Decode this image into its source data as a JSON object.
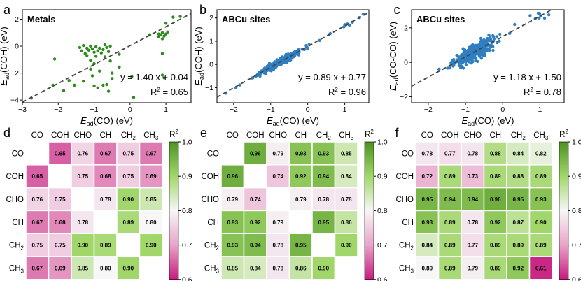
{
  "panel_labels": [
    "a",
    "b",
    "c",
    "d",
    "e",
    "f"
  ],
  "chart_data": [
    {
      "type": "scatter",
      "panel": "a",
      "title": "Metals",
      "xlabel": "E_ad(CO) (eV)",
      "ylabel": "E_ad(COH) (eV)",
      "xlim": [
        -3.0,
        1.7
      ],
      "ylim": [
        -4.2,
        2.7
      ],
      "xticks": [
        "-3",
        "-2",
        "-1",
        "0",
        "1"
      ],
      "yticks": [
        "-4",
        "-2",
        "0",
        "2"
      ],
      "fit": {
        "slope": 1.4,
        "intercept": 0.04
      },
      "annotation": {
        "equation": "y = 1.40 x + 0.04",
        "r2_label": "R",
        "r2_value": " = 0.65"
      },
      "color": "#2e8b1e",
      "points": [
        [
          -2.75,
          -3.85
        ],
        [
          -2.15,
          -2.9
        ],
        [
          -1.85,
          -3.3
        ],
        [
          -1.7,
          -2.55
        ],
        [
          -1.55,
          -2.9
        ],
        [
          -2.1,
          -0.95
        ],
        [
          -1.3,
          -2.6
        ],
        [
          -1.1,
          -1.7
        ],
        [
          -1.05,
          -2.2
        ],
        [
          -1.0,
          -2.95
        ],
        [
          -0.9,
          -3.1
        ],
        [
          -0.85,
          -1.85
        ],
        [
          -0.65,
          -2.85
        ],
        [
          -0.6,
          -3.35
        ],
        [
          -0.5,
          -2.4
        ],
        [
          -0.75,
          -2.9
        ],
        [
          -1.4,
          -0.1
        ],
        [
          -1.35,
          -0.35
        ],
        [
          -1.3,
          0.05
        ],
        [
          -1.25,
          -0.55
        ],
        [
          -1.2,
          -0.15
        ],
        [
          -1.15,
          -0.3
        ],
        [
          -1.1,
          0.0
        ],
        [
          -1.05,
          -0.2
        ],
        [
          -1.0,
          -0.45
        ],
        [
          -0.95,
          -0.05
        ],
        [
          -0.9,
          -0.35
        ],
        [
          -0.85,
          -0.15
        ],
        [
          -0.8,
          -0.5
        ],
        [
          -0.75,
          -0.25
        ],
        [
          -0.7,
          0.1
        ],
        [
          -0.65,
          -0.1
        ],
        [
          -0.6,
          -0.4
        ],
        [
          -0.55,
          0.0
        ],
        [
          -1.2,
          -0.7
        ],
        [
          -0.95,
          -0.75
        ],
        [
          -0.7,
          -0.8
        ],
        [
          -1.0,
          -1.3
        ],
        [
          -0.55,
          -1.1
        ],
        [
          -1.1,
          -1.05
        ],
        [
          -0.3,
          -0.6
        ],
        [
          -0.5,
          -2.0
        ],
        [
          0.8,
          0.7
        ],
        [
          0.85,
          0.85
        ],
        [
          0.9,
          1.0
        ],
        [
          0.95,
          0.75
        ],
        [
          1.0,
          0.9
        ],
        [
          1.05,
          1.05
        ],
        [
          0.8,
          0.9
        ],
        [
          0.9,
          0.55
        ],
        [
          1.2,
          2.15
        ],
        [
          1.4,
          2.2
        ],
        [
          1.0,
          1.7
        ],
        [
          0.55,
          0.85
        ],
        [
          0.9,
          -0.55
        ],
        [
          0.9,
          -2.15
        ],
        [
          0.95,
          -2.35
        ],
        [
          0.05,
          -2.25
        ],
        [
          0.1,
          -3.8
        ],
        [
          -0.3,
          -1.55
        ]
      ]
    },
    {
      "type": "scatter",
      "panel": "b",
      "title": "ABCu sites",
      "xlabel": "E_ad(CO) (eV)",
      "ylabel": "E_ad(COH) (eV)",
      "xlim": [
        -2.45,
        1.65
      ],
      "ylim": [
        -1.65,
        2.35
      ],
      "xticks": [
        "-2",
        "-1",
        "0",
        "1"
      ],
      "yticks": [
        "-1",
        "0",
        "1",
        "2"
      ],
      "fit": {
        "slope": 0.89,
        "intercept": 0.77
      },
      "annotation": {
        "equation": "y = 0.89 x + 0.77",
        "r2_label": "R",
        "r2_value": " = 0.96"
      },
      "color": "#2f7fc1",
      "n_points": 420,
      "noise": 0.12,
      "xrange": [
        -2.3,
        1.5
      ],
      "xcenter": -0.75
    },
    {
      "type": "scatter",
      "panel": "c",
      "title": "ABCu sites",
      "xlabel": "E_ad(CO) (eV)",
      "ylabel": "E_ad(CO-CO) (eV)",
      "xlim": [
        -2.45,
        1.65
      ],
      "ylim": [
        -2.35,
        3.05
      ],
      "xticks": [
        "-2",
        "-1",
        "0",
        "1"
      ],
      "yticks": [
        "-2",
        "0",
        "2"
      ],
      "fit": {
        "slope": 1.18,
        "intercept": 1.5
      },
      "annotation": {
        "equation": "y = 1.18 x + 1.50",
        "r2_label": "R",
        "r2_value": " = 0.78"
      },
      "color": "#2f7fc1",
      "n_points": 420,
      "noise": 0.38,
      "xrange": [
        -2.3,
        1.5
      ],
      "xcenter": -0.75
    },
    {
      "type": "heatmap",
      "panel": "d",
      "labels": [
        "CO",
        "COH",
        "CHO",
        "CH",
        "CH2",
        "CH3"
      ],
      "cbar": {
        "title": "R",
        "ticks": [
          "1.0",
          "0.9",
          "0.8",
          "0.7",
          "0.6"
        ],
        "min": 0.6,
        "max": 1.0
      },
      "values": [
        [
          null,
          0.65,
          0.76,
          0.67,
          0.75,
          0.67
        ],
        [
          0.65,
          null,
          0.75,
          0.68,
          0.75,
          0.69
        ],
        [
          0.76,
          0.75,
          null,
          0.78,
          0.9,
          0.85
        ],
        [
          0.67,
          0.68,
          0.78,
          null,
          0.89,
          0.8
        ],
        [
          0.75,
          0.75,
          0.9,
          0.89,
          null,
          0.9
        ],
        [
          0.67,
          0.69,
          0.85,
          0.8,
          0.9,
          null
        ]
      ]
    },
    {
      "type": "heatmap",
      "panel": "e",
      "labels": [
        "CO",
        "COH",
        "CHO",
        "CH",
        "CH2",
        "CH3"
      ],
      "cbar": {
        "title": "R",
        "ticks": [
          "1.0",
          "0.9",
          "0.8",
          "0.7",
          "0.6"
        ],
        "min": 0.6,
        "max": 1.0
      },
      "values": [
        [
          null,
          0.96,
          0.79,
          0.93,
          0.93,
          0.85
        ],
        [
          0.96,
          null,
          0.74,
          0.92,
          0.94,
          0.84
        ],
        [
          0.79,
          0.74,
          null,
          0.79,
          0.78,
          0.78
        ],
        [
          0.93,
          0.92,
          0.79,
          null,
          0.95,
          0.86
        ],
        [
          0.93,
          0.94,
          0.78,
          0.95,
          null,
          0.9
        ],
        [
          0.85,
          0.84,
          0.78,
          0.86,
          0.9,
          null
        ]
      ]
    },
    {
      "type": "heatmap",
      "panel": "f",
      "labels": [
        "CO",
        "COH",
        "CHO",
        "CH",
        "CH2",
        "CH3"
      ],
      "cbar": {
        "title": "R",
        "ticks": [
          "1.0",
          "0.9",
          "0.8",
          "0.7",
          "0.6"
        ],
        "min": 0.6,
        "max": 1.0
      },
      "values": [
        [
          0.78,
          0.77,
          0.78,
          0.88,
          0.84,
          0.82
        ],
        [
          0.72,
          0.89,
          0.73,
          0.89,
          0.88,
          0.89
        ],
        [
          0.95,
          0.94,
          0.94,
          0.96,
          0.95,
          0.93
        ],
        [
          0.93,
          0.89,
          0.78,
          0.92,
          0.87,
          0.9
        ],
        [
          0.84,
          0.89,
          0.77,
          0.89,
          0.89,
          0.89
        ],
        [
          0.8,
          0.89,
          0.79,
          0.89,
          0.92,
          0.61
        ]
      ]
    }
  ]
}
